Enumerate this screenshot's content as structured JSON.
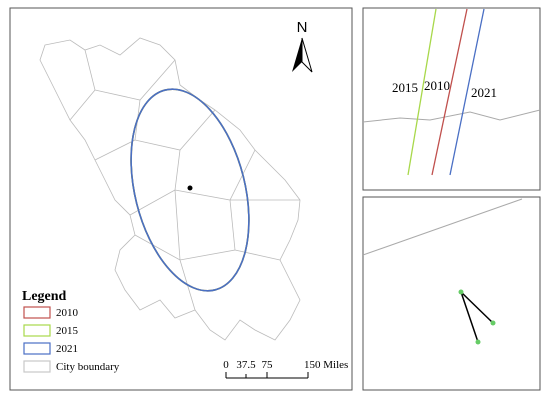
{
  "north_arrow": {
    "label": "N"
  },
  "legend": {
    "title": "Legend",
    "items": [
      {
        "label": "2010",
        "color": "#c0504d"
      },
      {
        "label": "2015",
        "color": "#a8d84a"
      },
      {
        "label": "2021",
        "color": "#4a6fc4"
      },
      {
        "label": "City boundary",
        "color": "#c8c8c8"
      }
    ]
  },
  "scale_bar": {
    "labels": [
      "0",
      "37.5",
      "75",
      "150 Miles"
    ]
  },
  "inset_top": {
    "labels": [
      "2015",
      "2010",
      "2021"
    ]
  }
}
